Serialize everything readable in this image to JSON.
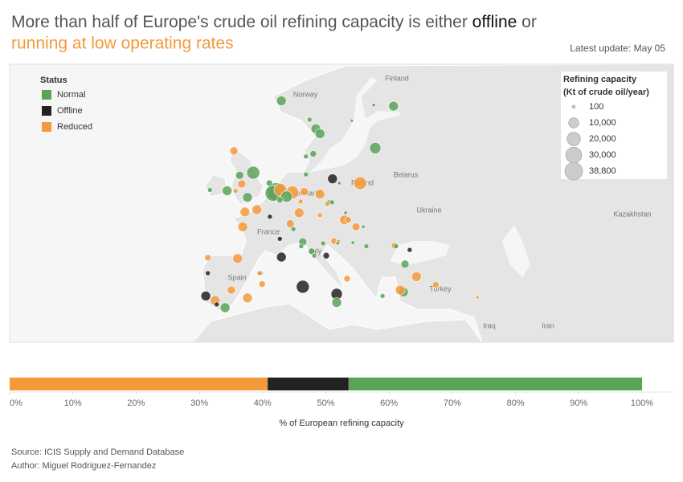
{
  "title_parts": [
    "More than half of Europe's crude oil refining capacity is either",
    "offline",
    "or",
    "running at low operating rates"
  ],
  "update_note": "Latest update: May 05",
  "source": "Source: ICIS Supply and Demand Database",
  "author": "Author: Miguel Rodriguez-Fernandez",
  "map_labels": [
    "Finland",
    "Norway",
    "Belarus",
    "Poland",
    "Germany",
    "Ukraine",
    "Kazakhstan",
    "France",
    "Italy",
    "Spain",
    "Turkey",
    "Iraq",
    "Iran"
  ],
  "chart_data": [
    {
      "type": "bubble_map",
      "legend_title": "Status",
      "size_legend_title": [
        "Refining capacity",
        "(Kt of crude oil/year)"
      ],
      "size_legend": [
        100,
        {
          "value": 10000,
          "label": "10,000"
        },
        {
          "value": 20000,
          "label": "20,000"
        },
        {
          "value": 30000,
          "label": "30,000"
        },
        {
          "value": 38800,
          "label": "38,800"
        }
      ],
      "series": [
        {
          "name": "Normal",
          "color": "#5ba35a",
          "x": [
            4.5,
            26.0,
            22.2,
            9.9,
            11.1,
            11.9,
            18.0,
            22.5,
            10.6,
            9.2,
            -0.9,
            -3.5,
            -2.0,
            -5.9,
            -9.2,
            3.5,
            2.9,
            5.5,
            2.2,
            9.2,
            13.6,
            14.2,
            4.2,
            6.8,
            8.6,
            8.3,
            10.3,
            10.8,
            12.5,
            15.3,
            18.2,
            20.8,
            26.5,
            28.2,
            27.9,
            23.9,
            15.1,
            -6.3,
            0.5,
            15.6,
            16.8,
            20.2
          ],
          "values": [
            61.1,
            60.6,
            60.7,
            59.3,
            58.4,
            57.9,
            59.2,
            56.4,
            55.8,
            55.5,
            53.7,
            53.4,
            50.8,
            51.6,
            51.7,
            51.5,
            51.3,
            50.9,
            52.5,
            53.5,
            50.2,
            50.2,
            50.5,
            46.8,
            45.1,
            44.5,
            43.8,
            43.2,
            44.9,
            44.9,
            45.0,
            44.5,
            44.5,
            42.0,
            37.9,
            37.3,
            36.3,
            35.5,
            40.7,
            52.5,
            48.9,
            47.1
          ],
          "sizes": [
            8700,
            8700,
            200,
            1000,
            8700,
            8700,
            100,
            13000,
            2700,
            1000,
            18200,
            5300,
            8700,
            8700,
            1000,
            38800,
            29500,
            13000,
            2700,
            1000,
            1000,
            1000,
            2700,
            1000,
            5300,
            1000,
            2700,
            1000,
            1000,
            200,
            200,
            1000,
            1000,
            5300,
            8700,
            1000,
            8700,
            8700,
            1000,
            200,
            200,
            200
          ]
        },
        {
          "name": "Offline",
          "color": "#222222",
          "x": [
            14.3,
            2.3,
            4.2,
            4.5,
            8.6,
            15.1,
            -10.0,
            -7.9,
            -9.6,
            13.1,
            29.1
          ],
          "values": [
            53.0,
            48.4,
            45.5,
            43.0,
            38.7,
            37.6,
            37.3,
            36.0,
            40.7,
            43.2,
            44.0
          ],
          "sizes": [
            8700,
            1000,
            1000,
            8700,
            18200,
            13000,
            8700,
            1000,
            1000,
            2700,
            1000
          ]
        },
        {
          "name": "Reduced",
          "color": "#f39a3c",
          "x": [
            -4.6,
            -3.1,
            -4.3,
            4.3,
            6.6,
            8.9,
            11.9,
            19.6,
            11.9,
            7.9,
            8.2,
            13.3,
            -2.5,
            -0.2,
            -2.9,
            6.2,
            16.6,
            17.3,
            18.8,
            14.6,
            15.4,
            -3.9,
            -9.6,
            0.3,
            0.8,
            -5.1,
            -8.2,
            -2.0,
            17.1,
            26.2,
            30.4,
            27.3,
            34.1,
            42.1
          ],
          "values": [
            56.1,
            52.4,
            51.6,
            51.7,
            51.4,
            51.5,
            51.2,
            52.5,
            48.6,
            48.9,
            50.3,
            50.0,
            49.0,
            49.3,
            47.1,
            47.5,
            48.0,
            48.0,
            47.1,
            45.2,
            45.1,
            42.8,
            42.9,
            40.7,
            39.1,
            38.2,
            36.6,
            37.0,
            39.9,
            44.6,
            40.2,
            38.2,
            39.0,
            37.1
          ],
          "sizes": [
            5300,
            5300,
            1000,
            18200,
            18200,
            5300,
            8700,
            18200,
            1000,
            8700,
            1000,
            1000,
            8700,
            8700,
            8700,
            5300,
            8700,
            2700,
            5300,
            2700,
            1000,
            8700,
            2700,
            1000,
            2700,
            5300,
            8700,
            8700,
            2700,
            2700,
            8700,
            8700,
            2700,
            100
          ]
        }
      ]
    },
    {
      "type": "stacked_bar",
      "xlabel": "% of European refining capacity",
      "xlim": [
        0,
        100
      ],
      "xticks": [
        {
          "value": 0,
          "label": "0%"
        },
        {
          "value": 10,
          "label": "10%"
        },
        {
          "value": 20,
          "label": "20%"
        },
        {
          "value": 30,
          "label": "30%"
        },
        {
          "value": 40,
          "label": "40%"
        },
        {
          "value": 50,
          "label": "50%"
        },
        {
          "value": 60,
          "label": "60%"
        },
        {
          "value": 70,
          "label": "70%"
        },
        {
          "value": 80,
          "label": "80%"
        },
        {
          "value": 90,
          "label": "90%"
        },
        {
          "value": 100,
          "label": "100%"
        }
      ],
      "series": [
        {
          "name": "Reduced",
          "color": "#f39a3c",
          "values": [
            40.8
          ]
        },
        {
          "name": "Offline",
          "color": "#222222",
          "values": [
            12.8
          ]
        },
        {
          "name": "Normal",
          "color": "#5ba35a",
          "values": [
            46.4
          ]
        }
      ]
    }
  ]
}
